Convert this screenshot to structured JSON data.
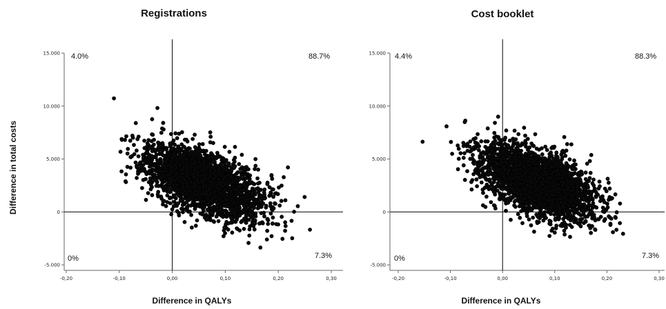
{
  "figure": {
    "ylabel": "Difference in total costs"
  },
  "chart_data": [
    {
      "type": "scatter",
      "title": "Registrations",
      "xlabel": "Difference in QALYs",
      "ylabel": "Difference in total costs",
      "xlim": [
        -0.2,
        0.3
      ],
      "ylim": [
        -5000,
        15000
      ],
      "x_ticks": [
        -0.2,
        -0.1,
        0.0,
        0.1,
        0.2,
        0.3
      ],
      "x_tick_labels": [
        "-0,20",
        "-0,10",
        "0,00",
        "0,10",
        "0,20",
        "0,30"
      ],
      "y_ticks": [
        -5000,
        0,
        5000,
        10000,
        15000
      ],
      "y_tick_labels": [
        "-5.000",
        "0",
        "5.000",
        "10.000",
        "15.000"
      ],
      "quadrant_labels": {
        "top_left": "4.0%",
        "top_right": "88.7%",
        "bottom_left": "0%",
        "bottom_right": "7.3%"
      },
      "reference_lines": {
        "x": 0,
        "y": 0
      },
      "cloud": {
        "center": [
          0.06,
          2800
        ],
        "sd": [
          0.055,
          1750
        ],
        "correlation": -0.55,
        "n_points": 2600,
        "seed": 11
      }
    },
    {
      "type": "scatter",
      "title": "Cost booklet",
      "xlabel": "Difference in QALYs",
      "ylabel": "Difference in total costs",
      "xlim": [
        -0.2,
        0.3
      ],
      "ylim": [
        -5000,
        15000
      ],
      "x_ticks": [
        -0.2,
        -0.1,
        0.0,
        0.1,
        0.2,
        0.3
      ],
      "x_tick_labels": [
        "-0,20",
        "-0,10",
        "0,00",
        "0,10",
        "0,20",
        "0,30"
      ],
      "y_ticks": [
        -5000,
        0,
        5000,
        10000,
        15000
      ],
      "y_tick_labels": [
        "-5.000",
        "0",
        "5.000",
        "10.000",
        "15.000"
      ],
      "quadrant_labels": {
        "top_left": "4.4%",
        "top_right": "88.3%",
        "bottom_left": "0%",
        "bottom_right": "7.3%"
      },
      "reference_lines": {
        "x": 0,
        "y": 0
      },
      "cloud": {
        "center": [
          0.065,
          2800
        ],
        "sd": [
          0.055,
          1750
        ],
        "correlation": -0.55,
        "n_points": 2600,
        "seed": 23
      }
    }
  ]
}
